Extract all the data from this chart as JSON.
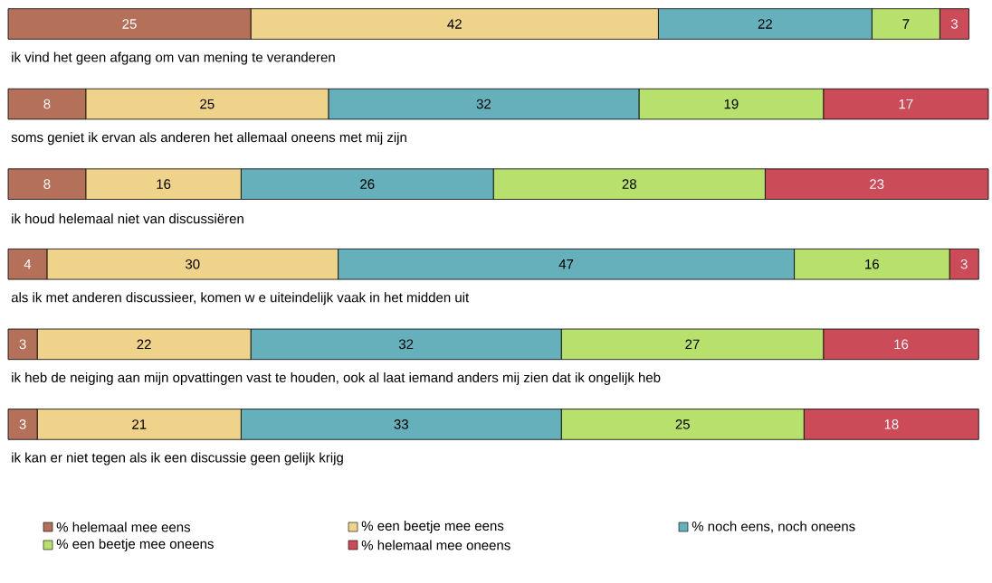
{
  "chart_data": {
    "type": "bar",
    "orientation": "horizontal",
    "stacked": true,
    "data_labels": true,
    "legend": "bottom",
    "categories": [
      "ik vind het geen afgang om van mening te veranderen",
      "soms geniet ik ervan als anderen het allemaal oneens met mij zijn",
      "ik houd helemaal niet van discussiëren",
      "als ik met anderen discussieer, komen w e uiteindelijk vaak in het midden uit",
      "ik heb de neiging aan mijn opvattingen vast te houden, ook al laat iemand anders mij zien dat ik ongelijk heb",
      "ik kan er niet tegen als ik een discussie geen gelijk krijg"
    ],
    "series": [
      {
        "name": "% helemaal mee eens",
        "color": "#b5705a",
        "values": [
          25,
          8,
          8,
          4,
          3,
          3
        ]
      },
      {
        "name": "% een beetje mee eens",
        "color": "#f0d38a",
        "values": [
          42,
          25,
          16,
          30,
          22,
          21
        ]
      },
      {
        "name": "% noch eens, noch oneens",
        "color": "#66b0bb",
        "values": [
          22,
          32,
          26,
          47,
          32,
          33
        ]
      },
      {
        "name": "% een beetje mee oneens",
        "color": "#b8e06c",
        "values": [
          7,
          19,
          28,
          16,
          27,
          25
        ]
      },
      {
        "name": "% helemaal mee oneens",
        "color": "#cc4b58",
        "values": [
          3,
          17,
          23,
          3,
          16,
          18
        ]
      }
    ]
  }
}
